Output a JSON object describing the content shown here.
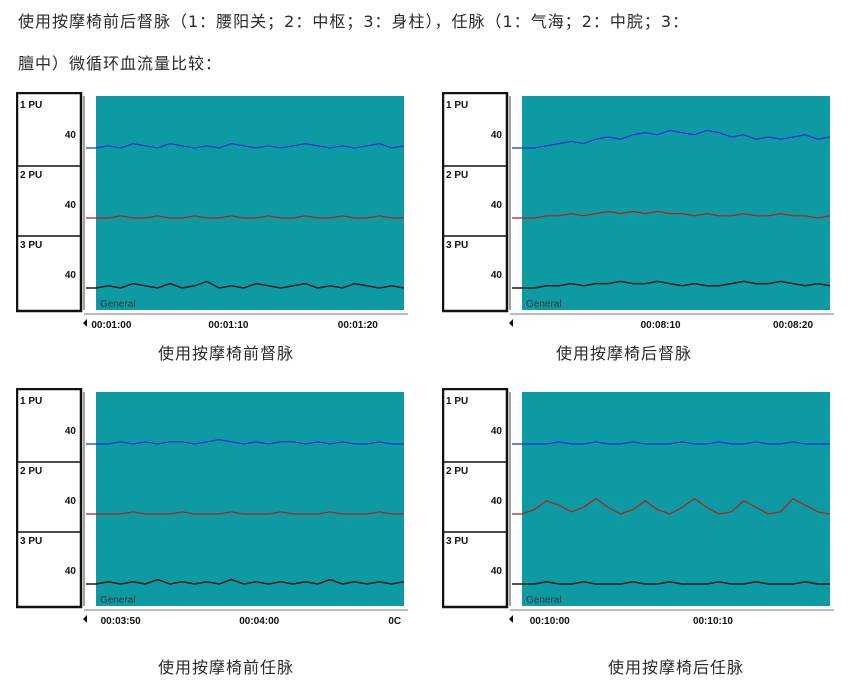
{
  "caption": {
    "line1": "使用按摩椅前后督脉（1：腰阳关；2：中枢；3：身柱），任脉（1：气海；2：中脘；3：",
    "line2": "膻中）微循环血流量比较："
  },
  "track_names": [
    "1 PU",
    "2 PU",
    "3 PU"
  ],
  "track_tick_value": "40",
  "general_label": "General",
  "panels": [
    {
      "label": "使用按摩椅前督脉",
      "time_ticks": [
        "00:01:00",
        "00:01:10",
        "00:01:20"
      ]
    },
    {
      "label": "使用按摩椅后督脉",
      "time_ticks": [
        "00:08:10",
        "00:08:20"
      ]
    },
    {
      "label": "使用按摩椅前任脉",
      "time_ticks": [
        "00:03:50",
        "00:04:00",
        "0C"
      ]
    },
    {
      "label": "使用按摩椅后任脉",
      "time_ticks": [
        "00:10:00",
        "00:10:10"
      ]
    }
  ],
  "colors": {
    "plot_bg": "#0e9aa2",
    "blue_trace": "#1b2fd6",
    "red_trace": "#b81c1c",
    "dark_trace": "#1a1a1a",
    "frame": "#111111"
  },
  "chart_data": [
    {
      "type": "line",
      "title": "使用按摩椅前督脉",
      "x_ticks": [
        "00:01:00",
        "00:01:10",
        "00:01:20"
      ],
      "series": [
        {
          "name": "1 PU",
          "values": [
            40,
            41,
            40,
            42,
            41,
            40,
            42,
            41,
            40,
            41,
            40,
            42,
            41,
            40,
            41,
            40,
            41,
            42,
            41,
            40,
            41,
            40,
            41,
            42,
            40,
            41
          ]
        },
        {
          "name": "2 PU",
          "values": [
            40,
            40,
            41,
            40,
            40,
            41,
            40,
            40,
            41,
            40,
            40,
            41,
            40,
            40,
            41,
            40,
            40,
            41,
            40,
            40,
            41,
            40,
            40,
            41,
            40,
            40
          ]
        },
        {
          "name": "3 PU",
          "values": [
            40,
            41,
            40,
            42,
            41,
            40,
            42,
            40,
            41,
            43,
            40,
            41,
            40,
            42,
            41,
            40,
            41,
            42,
            40,
            41,
            40,
            42,
            41,
            40,
            41,
            40
          ]
        }
      ]
    },
    {
      "type": "line",
      "title": "使用按摩椅后督脉",
      "x_ticks": [
        "00:08:10",
        "00:08:20"
      ],
      "series": [
        {
          "name": "1 PU",
          "values": [
            40,
            40,
            41,
            42,
            43,
            42,
            44,
            45,
            44,
            46,
            47,
            46,
            48,
            47,
            46,
            48,
            47,
            45,
            46,
            44,
            45,
            44,
            45,
            46,
            44,
            45
          ]
        },
        {
          "name": "2 PU",
          "values": [
            40,
            40,
            41,
            41,
            42,
            41,
            42,
            43,
            42,
            43,
            42,
            43,
            42,
            42,
            41,
            42,
            41,
            41,
            42,
            41,
            41,
            42,
            41,
            41,
            40,
            41
          ]
        },
        {
          "name": "3 PU",
          "values": [
            40,
            40,
            41,
            41,
            42,
            41,
            42,
            42,
            43,
            42,
            42,
            43,
            42,
            41,
            42,
            41,
            41,
            42,
            43,
            42,
            42,
            43,
            42,
            41,
            42,
            41
          ]
        }
      ]
    },
    {
      "type": "line",
      "title": "使用按摩椅前任脉",
      "x_ticks": [
        "00:03:50",
        "00:04:00",
        "0C"
      ],
      "series": [
        {
          "name": "1 PU",
          "values": [
            40,
            40,
            41,
            40,
            41,
            40,
            41,
            41,
            40,
            41,
            42,
            41,
            40,
            41,
            40,
            41,
            41,
            40,
            41,
            40,
            41,
            40,
            40,
            41,
            40,
            40
          ]
        },
        {
          "name": "2 PU",
          "values": [
            40,
            40,
            40,
            41,
            40,
            40,
            40,
            41,
            40,
            40,
            40,
            41,
            40,
            40,
            40,
            41,
            40,
            40,
            40,
            41,
            40,
            40,
            40,
            41,
            40,
            40
          ]
        },
        {
          "name": "3 PU",
          "values": [
            40,
            41,
            40,
            41,
            40,
            42,
            40,
            41,
            40,
            41,
            40,
            42,
            40,
            41,
            40,
            41,
            40,
            41,
            40,
            42,
            40,
            41,
            40,
            41,
            40,
            41
          ]
        }
      ]
    },
    {
      "type": "line",
      "title": "使用按摩椅后任脉",
      "x_ticks": [
        "00:10:00",
        "00:10:10"
      ],
      "series": [
        {
          "name": "1 PU",
          "values": [
            40,
            40,
            40,
            41,
            40,
            40,
            41,
            40,
            40,
            41,
            40,
            40,
            40,
            41,
            40,
            40,
            41,
            40,
            40,
            41,
            40,
            40,
            41,
            40,
            40,
            40
          ]
        },
        {
          "name": "2 PU",
          "values": [
            40,
            42,
            46,
            44,
            41,
            43,
            47,
            43,
            40,
            42,
            46,
            42,
            40,
            43,
            47,
            43,
            40,
            41,
            46,
            43,
            40,
            41,
            47,
            44,
            41,
            40
          ]
        },
        {
          "name": "3 PU",
          "values": [
            40,
            40,
            41,
            40,
            40,
            41,
            40,
            40,
            40,
            41,
            40,
            40,
            41,
            40,
            40,
            40,
            41,
            40,
            40,
            41,
            40,
            40,
            40,
            41,
            40,
            40
          ]
        }
      ]
    }
  ]
}
